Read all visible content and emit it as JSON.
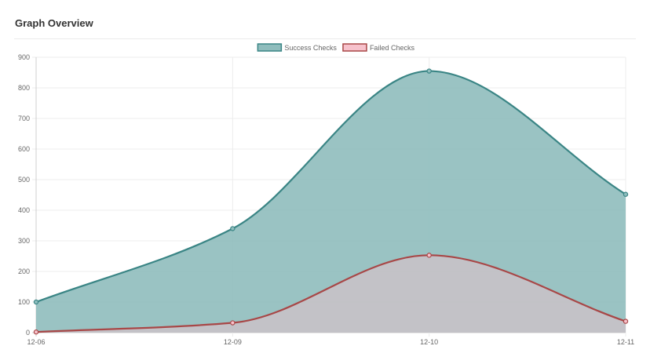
{
  "header": {
    "title": "Graph Overview"
  },
  "chart_data": {
    "type": "area",
    "x": [
      "12-06",
      "12-09",
      "12-10",
      "12-11"
    ],
    "series": [
      {
        "name": "Success Checks",
        "values": [
          100,
          340,
          855,
          452
        ],
        "stroke": "#3a8585",
        "fill": "#8fbdbd"
      },
      {
        "name": "Failed Checks",
        "values": [
          2,
          32,
          253,
          37
        ],
        "stroke": "#a84747",
        "fill": "#f7c2cc"
      }
    ],
    "ylim": [
      0,
      900
    ],
    "yticks": [
      0,
      100,
      200,
      300,
      400,
      500,
      600,
      700,
      800,
      900
    ],
    "legend": "top",
    "grid": true
  }
}
